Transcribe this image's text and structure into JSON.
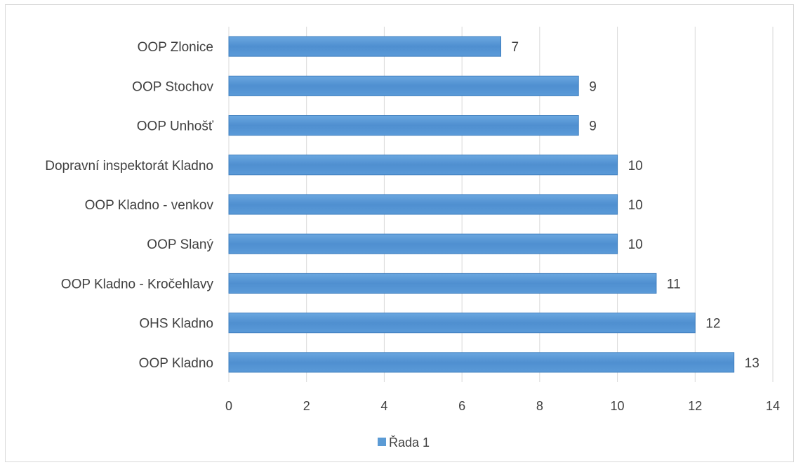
{
  "chart_data": {
    "type": "bar",
    "orientation": "horizontal",
    "categories": [
      "OOP Zlonice",
      "OOP Stochov",
      "OOP Unhošť",
      "Dopravní inspektorát Kladno",
      "OOP Kladno - venkov",
      "OOP Slaný",
      "OOP Kladno - Kročehlavy",
      "OHS Kladno",
      "OOP Kladno"
    ],
    "series": [
      {
        "name": "Řada 1",
        "values": [
          7,
          9,
          9,
          10,
          10,
          10,
          11,
          12,
          13
        ],
        "color": "#5b9bd5"
      }
    ],
    "xlim": [
      0,
      14
    ],
    "xticks": [
      "0",
      "2",
      "4",
      "6",
      "8",
      "10",
      "12",
      "14"
    ],
    "grid": true,
    "data_labels": true,
    "legend_position": "bottom",
    "title": "",
    "xlabel": "",
    "ylabel": ""
  }
}
